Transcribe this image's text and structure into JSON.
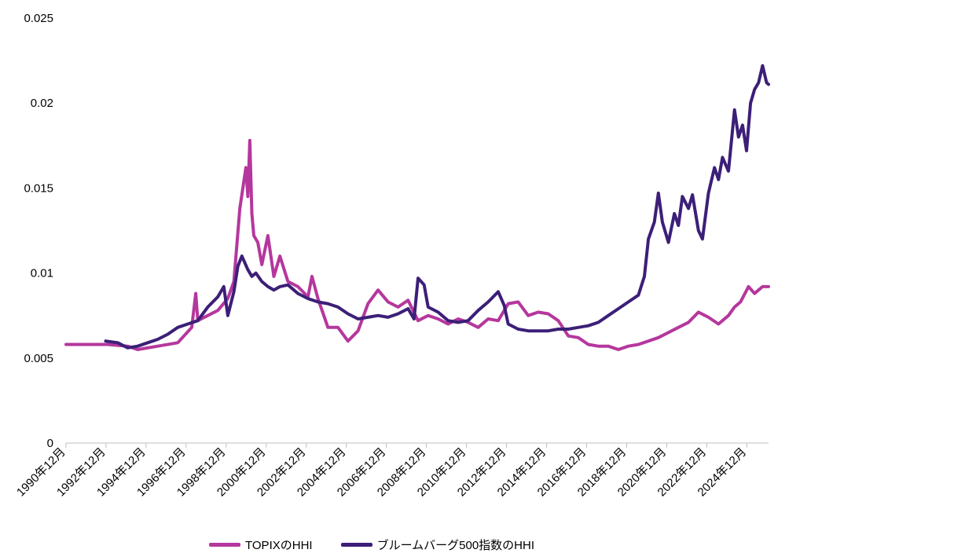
{
  "chart_data": {
    "type": "line",
    "title": "",
    "xlabel": "",
    "ylabel": "",
    "ylim": [
      0,
      0.025
    ],
    "y_ticks": [
      "0",
      "0.005",
      "0.01",
      "0.015",
      "0.02",
      "0.025"
    ],
    "x_ticks": [
      "1990年12月",
      "1992年12月",
      "1994年12月",
      "1996年12月",
      "1998年12月",
      "2000年12月",
      "2002年12月",
      "2004年12月",
      "2006年12月",
      "2008年12月",
      "2010年12月",
      "2012年12月",
      "2014年12月",
      "2016年12月",
      "2018年12月",
      "2020年12月",
      "2022年12月",
      "2024年12月"
    ],
    "x_range": [
      1990.92,
      2026.0
    ],
    "grid": false,
    "legend_position": "bottom",
    "series": [
      {
        "name": "TOPIXのHHI",
        "color": "#b5379d",
        "x": [
          1990.92,
          1993.0,
          1994.0,
          1994.5,
          1995.5,
          1996.5,
          1997.2,
          1997.4,
          1997.5,
          1998.0,
          1998.5,
          1999.0,
          1999.3,
          1999.6,
          1999.9,
          2000.0,
          2000.1,
          2000.2,
          2000.3,
          2000.5,
          2000.7,
          2001.0,
          2001.3,
          2001.6,
          2002.0,
          2002.5,
          2003.0,
          2003.2,
          2003.5,
          2004.0,
          2004.5,
          2005.0,
          2005.5,
          2006.0,
          2006.5,
          2007.0,
          2007.5,
          2008.0,
          2008.5,
          2009.0,
          2009.5,
          2010.0,
          2010.5,
          2011.0,
          2011.5,
          2012.0,
          2012.5,
          2013.0,
          2013.5,
          2014.0,
          2014.5,
          2015.0,
          2015.5,
          2016.0,
          2016.5,
          2017.0,
          2017.5,
          2018.0,
          2018.5,
          2019.0,
          2019.5,
          2020.0,
          2020.5,
          2021.0,
          2021.5,
          2022.0,
          2022.5,
          2023.0,
          2023.5,
          2024.0,
          2024.3,
          2024.6,
          2025.0,
          2025.3,
          2025.5,
          2025.7,
          2026.0
        ],
        "values": [
          0.0058,
          0.0058,
          0.0057,
          0.0055,
          0.0057,
          0.0059,
          0.0068,
          0.0088,
          0.0072,
          0.0075,
          0.0078,
          0.0085,
          0.0095,
          0.0138,
          0.0162,
          0.0145,
          0.0178,
          0.0135,
          0.0122,
          0.0118,
          0.0105,
          0.0122,
          0.0098,
          0.011,
          0.0095,
          0.0092,
          0.0086,
          0.0098,
          0.0085,
          0.0068,
          0.0068,
          0.006,
          0.0066,
          0.0082,
          0.009,
          0.0083,
          0.008,
          0.0084,
          0.0072,
          0.0075,
          0.0073,
          0.007,
          0.0073,
          0.0071,
          0.0068,
          0.0073,
          0.0072,
          0.0082,
          0.0083,
          0.0075,
          0.0077,
          0.0076,
          0.0072,
          0.0063,
          0.0062,
          0.0058,
          0.0057,
          0.0057,
          0.0055,
          0.0057,
          0.0058,
          0.006,
          0.0062,
          0.0065,
          0.0068,
          0.0071,
          0.0077,
          0.0074,
          0.007,
          0.0075,
          0.008,
          0.0083,
          0.0092,
          0.0088,
          0.009,
          0.0092,
          0.0092
        ]
      },
      {
        "name": "ブルームバーグ500指数のHHI",
        "color": "#3c1f78",
        "x": [
          1992.9,
          1993.5,
          1994.0,
          1994.5,
          1995.0,
          1995.5,
          1996.0,
          1996.5,
          1997.0,
          1997.5,
          1998.0,
          1998.5,
          1998.8,
          1999.0,
          1999.3,
          1999.5,
          1999.7,
          2000.0,
          2000.2,
          2000.4,
          2000.7,
          2001.0,
          2001.3,
          2001.6,
          2002.0,
          2002.5,
          2003.0,
          2003.5,
          2004.0,
          2004.5,
          2005.0,
          2005.5,
          2006.0,
          2006.5,
          2007.0,
          2007.5,
          2008.0,
          2008.3,
          2008.5,
          2008.8,
          2009.0,
          2009.5,
          2010.0,
          2010.5,
          2011.0,
          2011.5,
          2012.0,
          2012.5,
          2012.8,
          2013.0,
          2013.5,
          2014.0,
          2014.5,
          2015.0,
          2015.5,
          2016.0,
          2016.5,
          2017.0,
          2017.5,
          2018.0,
          2018.5,
          2019.0,
          2019.5,
          2019.8,
          2020.0,
          2020.3,
          2020.5,
          2020.7,
          2021.0,
          2021.3,
          2021.5,
          2021.7,
          2022.0,
          2022.2,
          2022.5,
          2022.7,
          2023.0,
          2023.3,
          2023.5,
          2023.7,
          2024.0,
          2024.3,
          2024.5,
          2024.7,
          2024.9,
          2025.1,
          2025.3,
          2025.5,
          2025.7,
          2025.9,
          2026.0
        ],
        "values": [
          0.006,
          0.0059,
          0.0056,
          0.0057,
          0.0059,
          0.0061,
          0.0064,
          0.0068,
          0.007,
          0.0072,
          0.008,
          0.0086,
          0.0092,
          0.0075,
          0.0089,
          0.0104,
          0.011,
          0.0102,
          0.0098,
          0.01,
          0.0095,
          0.0092,
          0.009,
          0.0092,
          0.0093,
          0.0088,
          0.0085,
          0.0083,
          0.0082,
          0.008,
          0.0076,
          0.0073,
          0.0074,
          0.0075,
          0.0074,
          0.0076,
          0.0079,
          0.0073,
          0.0097,
          0.0093,
          0.008,
          0.0077,
          0.0072,
          0.0071,
          0.0072,
          0.0078,
          0.0083,
          0.0089,
          0.0081,
          0.007,
          0.0067,
          0.0066,
          0.0066,
          0.0066,
          0.0067,
          0.0067,
          0.0068,
          0.0069,
          0.0071,
          0.0075,
          0.0079,
          0.0083,
          0.0087,
          0.0098,
          0.012,
          0.013,
          0.0147,
          0.013,
          0.0118,
          0.0135,
          0.0128,
          0.0145,
          0.0138,
          0.0146,
          0.0125,
          0.012,
          0.0147,
          0.0162,
          0.0155,
          0.0168,
          0.016,
          0.0196,
          0.018,
          0.0187,
          0.0172,
          0.02,
          0.0208,
          0.0212,
          0.0222,
          0.0212,
          0.0211
        ]
      }
    ]
  }
}
